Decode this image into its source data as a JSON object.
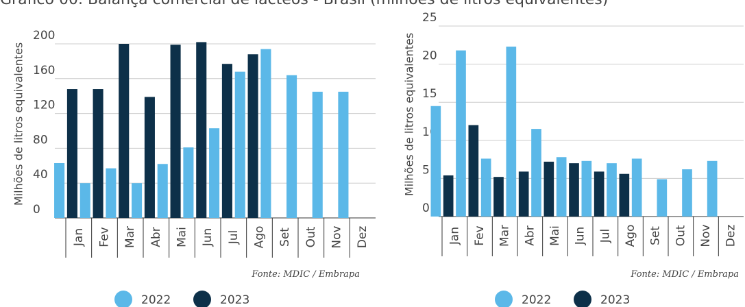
{
  "title": "Gráfico 00. Balança comercial de lácteos - Brasil (milhões de litros equivalentes)",
  "chart_data": [
    {
      "type": "bar",
      "ylabel": "Milhões de litros equivalentes",
      "categories": [
        "Jan",
        "Fev",
        "Mar",
        "Abr",
        "Mai",
        "Jun",
        "Jul",
        "Ago",
        "Set",
        "Out",
        "Nov",
        "Dez"
      ],
      "series": [
        {
          "name": "2022",
          "color": "#5bb8e8",
          "values": [
            63,
            40,
            57,
            40,
            62,
            81,
            103,
            168,
            194,
            164,
            145,
            145
          ]
        },
        {
          "name": "2023",
          "color": "#0d3049",
          "values": [
            148,
            148,
            200,
            139,
            199,
            202,
            177,
            188,
            null,
            null,
            null,
            null
          ]
        }
      ],
      "ylim": [
        0,
        200
      ],
      "yticks": [
        0,
        40,
        80,
        120,
        160,
        200
      ],
      "grid": true,
      "source": "Fonte: MDIC / Embrapa"
    },
    {
      "type": "bar",
      "ylabel": "Milhões de litros equivalentes",
      "categories": [
        "Jan",
        "Fev",
        "Mar",
        "Abr",
        "Mai",
        "Jun",
        "Jul",
        "Ago",
        "Set",
        "Out",
        "Nov",
        "Dez"
      ],
      "series": [
        {
          "name": "2022",
          "color": "#5bb8e8",
          "values": [
            14.5,
            21.8,
            7.6,
            22.3,
            11.5,
            7.8,
            7.3,
            7.0,
            7.6,
            4.9,
            6.2,
            7.3
          ]
        },
        {
          "name": "2023",
          "color": "#0d3049",
          "values": [
            5.4,
            12.0,
            5.2,
            5.9,
            7.2,
            7.0,
            5.9,
            5.6,
            null,
            null,
            null,
            null
          ]
        }
      ],
      "ylim": [
        0,
        25
      ],
      "yticks": [
        0,
        5,
        10,
        15,
        20,
        25
      ],
      "grid": true,
      "source": "Fonte: MDIC / Embrapa"
    }
  ]
}
